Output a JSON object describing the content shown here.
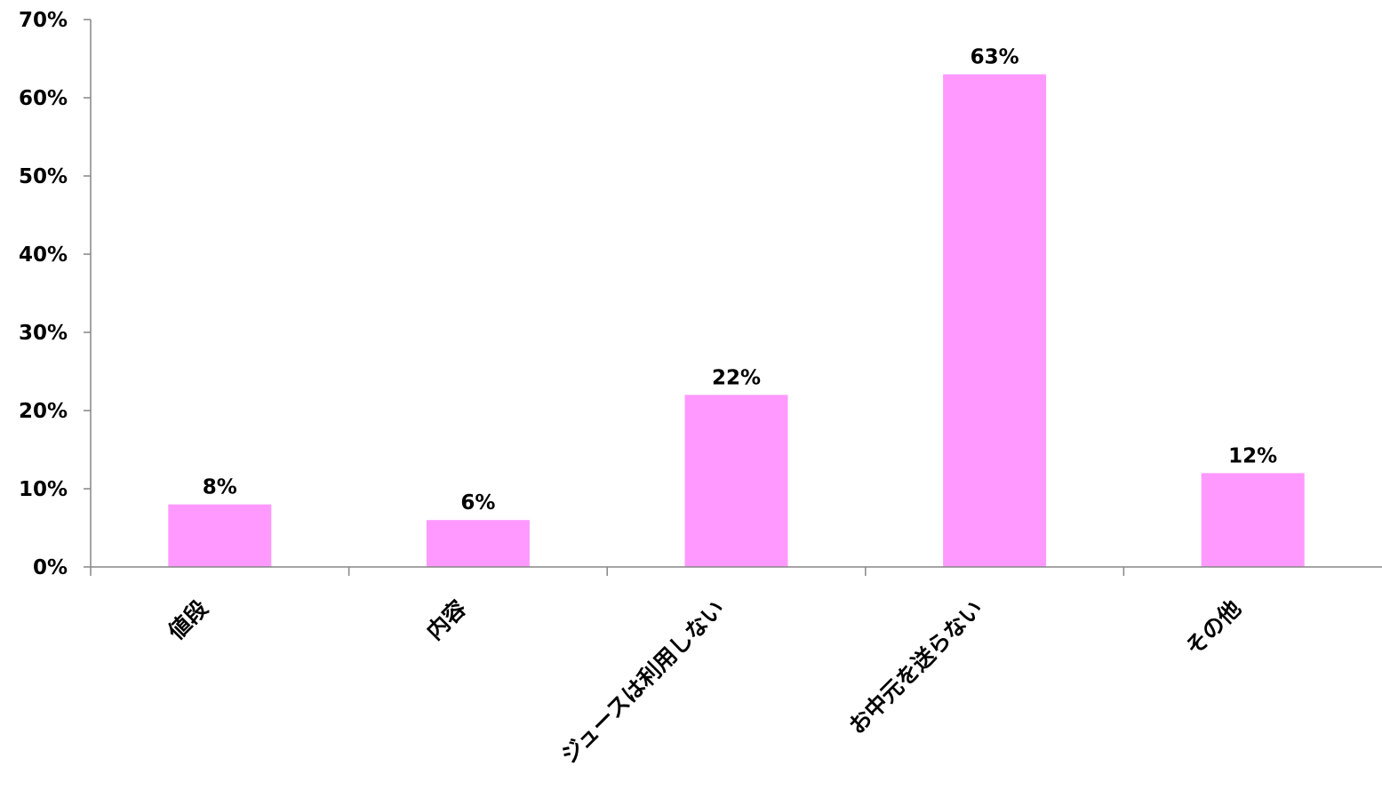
{
  "chart_data": {
    "type": "bar",
    "categories": [
      "値段",
      "内容",
      "ジュースは利用しない",
      "お中元を送らない",
      "その他"
    ],
    "values": [
      8,
      6,
      22,
      63,
      12
    ],
    "data_labels": [
      "8%",
      "6%",
      "22%",
      "63%",
      "12%"
    ],
    "ylim": [
      0,
      70
    ],
    "yticks": [
      0,
      10,
      20,
      30,
      40,
      50,
      60,
      70
    ],
    "ytick_labels": [
      "0%",
      "10%",
      "20%",
      "30%",
      "40%",
      "50%",
      "60%",
      "70%"
    ],
    "bar_color": "#ff99ff",
    "grid": false,
    "legend": "none"
  }
}
